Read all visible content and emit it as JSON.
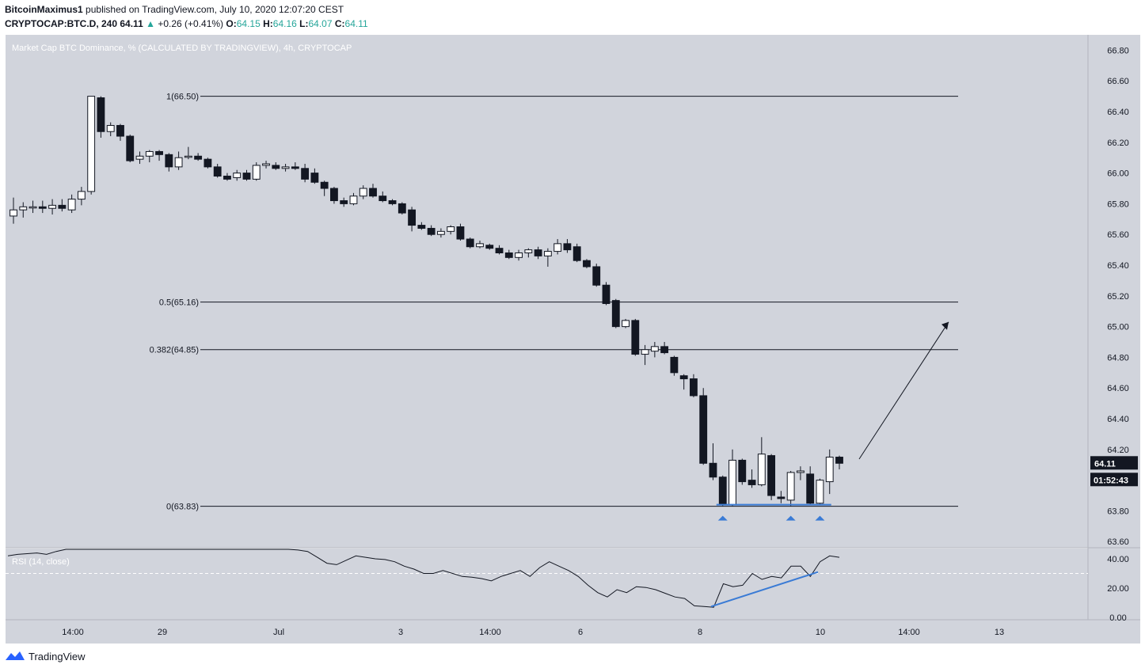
{
  "header": {
    "author": "BitcoinMaximus1",
    "published_text": "published on TradingView.com, July 10, 2020 12:07:20 CEST",
    "symbol": "CRYPTOCAP:BTC.D, 240",
    "last": "64.11",
    "change": "+0.26 (+0.41%)",
    "o_label": "O:",
    "o": "64.15",
    "h_label": "H:",
    "h": "64.16",
    "l_label": "L:",
    "l": "64.07",
    "c_label": "C:",
    "c": "64.11"
  },
  "footer": {
    "brand": "TradingView",
    "logo_icon": "tradingview-logo-icon"
  },
  "colors": {
    "pane_bg": "#d1d4dc",
    "up_fill": "#ffffff",
    "down_fill": "#131722",
    "fib_line": "#131722",
    "support_line": "#3a7bd5",
    "triangle": "#3a7bd5",
    "rsi_line": "#131722",
    "price_badge": "#131722"
  },
  "chart_data": [
    {
      "type": "candlestick",
      "title": "Market Cap BTC Dominance, % (CALCULATED BY TRADINGVIEW), 4h, CRYPTOCAP",
      "x_tick_labels": [
        "14:00",
        "29",
        "Jul",
        "3",
        "14:00",
        "6",
        "8",
        "10",
        "14:00",
        "13"
      ],
      "y_ticks": [
        "66.80",
        "66.60",
        "66.40",
        "66.20",
        "66.00",
        "65.80",
        "65.60",
        "65.40",
        "65.20",
        "65.00",
        "64.80",
        "64.60",
        "64.40",
        "64.20",
        "64.00",
        "63.80",
        "63.60"
      ],
      "ylim": [
        63.56,
        66.9
      ],
      "fib_levels": [
        {
          "label": "1(66.50)",
          "value": 66.5
        },
        {
          "label": "0.5(65.16)",
          "value": 65.16
        },
        {
          "label": "0.382(64.85)",
          "value": 64.85
        },
        {
          "label": "0(63.83)",
          "value": 63.83
        }
      ],
      "last_price_label": "64.11",
      "countdown_label": "01:52:43",
      "candles": [
        {
          "o": 65.72,
          "h": 65.84,
          "l": 65.67,
          "c": 65.76
        },
        {
          "o": 65.76,
          "h": 65.81,
          "l": 65.71,
          "c": 65.78
        },
        {
          "o": 65.78,
          "h": 65.82,
          "l": 65.74,
          "c": 65.78
        },
        {
          "o": 65.78,
          "h": 65.82,
          "l": 65.74,
          "c": 65.77
        },
        {
          "o": 65.77,
          "h": 65.83,
          "l": 65.73,
          "c": 65.79
        },
        {
          "o": 65.79,
          "h": 65.83,
          "l": 65.75,
          "c": 65.77
        },
        {
          "o": 65.76,
          "h": 65.86,
          "l": 65.74,
          "c": 65.83
        },
        {
          "o": 65.83,
          "h": 65.91,
          "l": 65.79,
          "c": 65.88
        },
        {
          "o": 65.88,
          "h": 66.5,
          "l": 65.86,
          "c": 66.5
        },
        {
          "o": 66.49,
          "h": 66.5,
          "l": 66.23,
          "c": 66.27
        },
        {
          "o": 66.27,
          "h": 66.33,
          "l": 66.24,
          "c": 66.31
        },
        {
          "o": 66.31,
          "h": 66.32,
          "l": 66.21,
          "c": 66.24
        },
        {
          "o": 66.24,
          "h": 66.25,
          "l": 66.07,
          "c": 66.08
        },
        {
          "o": 66.09,
          "h": 66.14,
          "l": 66.06,
          "c": 66.11
        },
        {
          "o": 66.11,
          "h": 66.15,
          "l": 66.07,
          "c": 66.14
        },
        {
          "o": 66.14,
          "h": 66.15,
          "l": 66.08,
          "c": 66.12
        },
        {
          "o": 66.12,
          "h": 66.13,
          "l": 66.01,
          "c": 66.04
        },
        {
          "o": 66.04,
          "h": 66.14,
          "l": 66.02,
          "c": 66.1
        },
        {
          "o": 66.11,
          "h": 66.17,
          "l": 66.09,
          "c": 66.11
        },
        {
          "o": 66.11,
          "h": 66.13,
          "l": 66.08,
          "c": 66.09
        },
        {
          "o": 66.09,
          "h": 66.1,
          "l": 66.03,
          "c": 66.04
        },
        {
          "o": 66.04,
          "h": 66.06,
          "l": 65.97,
          "c": 65.98
        },
        {
          "o": 65.98,
          "h": 66.0,
          "l": 65.95,
          "c": 65.96
        },
        {
          "o": 65.97,
          "h": 66.02,
          "l": 65.95,
          "c": 66.0
        },
        {
          "o": 66.0,
          "h": 66.02,
          "l": 65.95,
          "c": 65.96
        },
        {
          "o": 65.96,
          "h": 66.07,
          "l": 65.95,
          "c": 66.05
        },
        {
          "o": 66.05,
          "h": 66.08,
          "l": 66.03,
          "c": 66.06
        },
        {
          "o": 66.05,
          "h": 66.07,
          "l": 66.02,
          "c": 66.03
        },
        {
          "o": 66.03,
          "h": 66.06,
          "l": 66.01,
          "c": 66.04
        },
        {
          "o": 66.04,
          "h": 66.07,
          "l": 66.02,
          "c": 66.03
        },
        {
          "o": 66.03,
          "h": 66.06,
          "l": 65.94,
          "c": 65.96
        },
        {
          "o": 66.0,
          "h": 66.03,
          "l": 65.93,
          "c": 65.94
        },
        {
          "o": 65.94,
          "h": 65.95,
          "l": 65.85,
          "c": 65.9
        },
        {
          "o": 65.9,
          "h": 65.91,
          "l": 65.8,
          "c": 65.82
        },
        {
          "o": 65.82,
          "h": 65.84,
          "l": 65.78,
          "c": 65.8
        },
        {
          "o": 65.8,
          "h": 65.87,
          "l": 65.79,
          "c": 65.85
        },
        {
          "o": 65.85,
          "h": 65.92,
          "l": 65.83,
          "c": 65.9
        },
        {
          "o": 65.9,
          "h": 65.93,
          "l": 65.84,
          "c": 65.85
        },
        {
          "o": 65.85,
          "h": 65.88,
          "l": 65.81,
          "c": 65.82
        },
        {
          "o": 65.82,
          "h": 65.83,
          "l": 65.79,
          "c": 65.8
        },
        {
          "o": 65.8,
          "h": 65.81,
          "l": 65.73,
          "c": 65.74
        },
        {
          "o": 65.76,
          "h": 65.78,
          "l": 65.62,
          "c": 65.66
        },
        {
          "o": 65.66,
          "h": 65.68,
          "l": 65.63,
          "c": 65.64
        },
        {
          "o": 65.64,
          "h": 65.66,
          "l": 65.59,
          "c": 65.6
        },
        {
          "o": 65.6,
          "h": 65.64,
          "l": 65.58,
          "c": 65.62
        },
        {
          "o": 65.62,
          "h": 65.66,
          "l": 65.6,
          "c": 65.65
        },
        {
          "o": 65.65,
          "h": 65.67,
          "l": 65.56,
          "c": 65.57
        },
        {
          "o": 65.57,
          "h": 65.58,
          "l": 65.51,
          "c": 65.52
        },
        {
          "o": 65.52,
          "h": 65.56,
          "l": 65.51,
          "c": 65.54
        },
        {
          "o": 65.53,
          "h": 65.54,
          "l": 65.5,
          "c": 65.51
        },
        {
          "o": 65.51,
          "h": 65.53,
          "l": 65.47,
          "c": 65.48
        },
        {
          "o": 65.48,
          "h": 65.5,
          "l": 65.44,
          "c": 65.45
        },
        {
          "o": 65.45,
          "h": 65.5,
          "l": 65.43,
          "c": 65.48
        },
        {
          "o": 65.48,
          "h": 65.51,
          "l": 65.45,
          "c": 65.5
        },
        {
          "o": 65.5,
          "h": 65.52,
          "l": 65.44,
          "c": 65.46
        },
        {
          "o": 65.46,
          "h": 65.51,
          "l": 65.39,
          "c": 65.49
        },
        {
          "o": 65.49,
          "h": 65.57,
          "l": 65.47,
          "c": 65.54
        },
        {
          "o": 65.54,
          "h": 65.57,
          "l": 65.48,
          "c": 65.5
        },
        {
          "o": 65.52,
          "h": 65.54,
          "l": 65.42,
          "c": 65.43
        },
        {
          "o": 65.43,
          "h": 65.44,
          "l": 65.38,
          "c": 65.39
        },
        {
          "o": 65.39,
          "h": 65.41,
          "l": 65.26,
          "c": 65.27
        },
        {
          "o": 65.27,
          "h": 65.29,
          "l": 65.14,
          "c": 65.15
        },
        {
          "o": 65.17,
          "h": 65.18,
          "l": 64.99,
          "c": 65.0
        },
        {
          "o": 65.0,
          "h": 65.05,
          "l": 64.99,
          "c": 65.04
        },
        {
          "o": 65.04,
          "h": 65.05,
          "l": 64.81,
          "c": 64.82
        },
        {
          "o": 64.82,
          "h": 64.88,
          "l": 64.75,
          "c": 64.85
        },
        {
          "o": 64.84,
          "h": 64.9,
          "l": 64.8,
          "c": 64.87
        },
        {
          "o": 64.87,
          "h": 64.9,
          "l": 64.82,
          "c": 64.83
        },
        {
          "o": 64.8,
          "h": 64.81,
          "l": 64.68,
          "c": 64.7
        },
        {
          "o": 64.68,
          "h": 64.69,
          "l": 64.59,
          "c": 64.66
        },
        {
          "o": 64.66,
          "h": 64.69,
          "l": 64.54,
          "c": 64.55
        },
        {
          "o": 64.55,
          "h": 64.6,
          "l": 64.1,
          "c": 64.11
        },
        {
          "o": 64.11,
          "h": 64.24,
          "l": 64.0,
          "c": 64.02
        },
        {
          "o": 64.02,
          "h": 64.03,
          "l": 63.83,
          "c": 63.84
        },
        {
          "o": 63.84,
          "h": 64.2,
          "l": 63.83,
          "c": 64.13
        },
        {
          "o": 64.13,
          "h": 64.14,
          "l": 63.97,
          "c": 63.99
        },
        {
          "o": 64.0,
          "h": 64.07,
          "l": 63.95,
          "c": 63.97
        },
        {
          "o": 63.97,
          "h": 64.28,
          "l": 63.96,
          "c": 64.17
        },
        {
          "o": 64.16,
          "h": 64.17,
          "l": 63.87,
          "c": 63.9
        },
        {
          "o": 63.89,
          "h": 63.93,
          "l": 63.85,
          "c": 63.88
        },
        {
          "o": 63.87,
          "h": 64.06,
          "l": 63.83,
          "c": 64.05
        },
        {
          "o": 64.05,
          "h": 64.09,
          "l": 64.0,
          "c": 64.06
        },
        {
          "o": 64.04,
          "h": 64.09,
          "l": 63.84,
          "c": 63.85
        },
        {
          "o": 63.85,
          "h": 64.01,
          "l": 63.84,
          "c": 64.0
        },
        {
          "o": 63.99,
          "h": 64.2,
          "l": 63.91,
          "c": 64.15
        },
        {
          "o": 64.15,
          "h": 64.16,
          "l": 64.07,
          "c": 64.11
        }
      ]
    },
    {
      "type": "line",
      "title": "RSI (14, close)",
      "y_ticks": [
        "40.00",
        "20.00",
        "0.00"
      ],
      "ylim": [
        -1.5,
        47
      ],
      "reference_level": 30,
      "values": [
        42,
        43,
        43.5,
        44,
        43,
        45,
        48,
        51,
        60,
        58,
        57,
        56,
        54,
        53,
        54,
        55,
        54,
        53,
        54,
        53,
        52,
        51,
        51,
        52,
        51,
        53,
        53,
        52,
        52,
        51,
        46,
        45,
        41,
        37,
        36,
        39,
        42,
        41,
        40,
        39.5,
        38,
        35,
        33,
        30,
        30,
        32,
        30,
        28,
        27.5,
        26.5,
        25,
        28,
        30,
        32,
        28,
        34,
        38,
        35,
        32,
        28,
        22,
        17,
        14,
        19,
        17,
        21,
        20.5,
        19,
        16.5,
        14,
        13,
        8,
        7.5,
        7,
        23,
        21,
        22,
        30,
        26,
        28,
        27,
        35,
        35,
        28,
        38,
        42,
        41
      ]
    }
  ]
}
